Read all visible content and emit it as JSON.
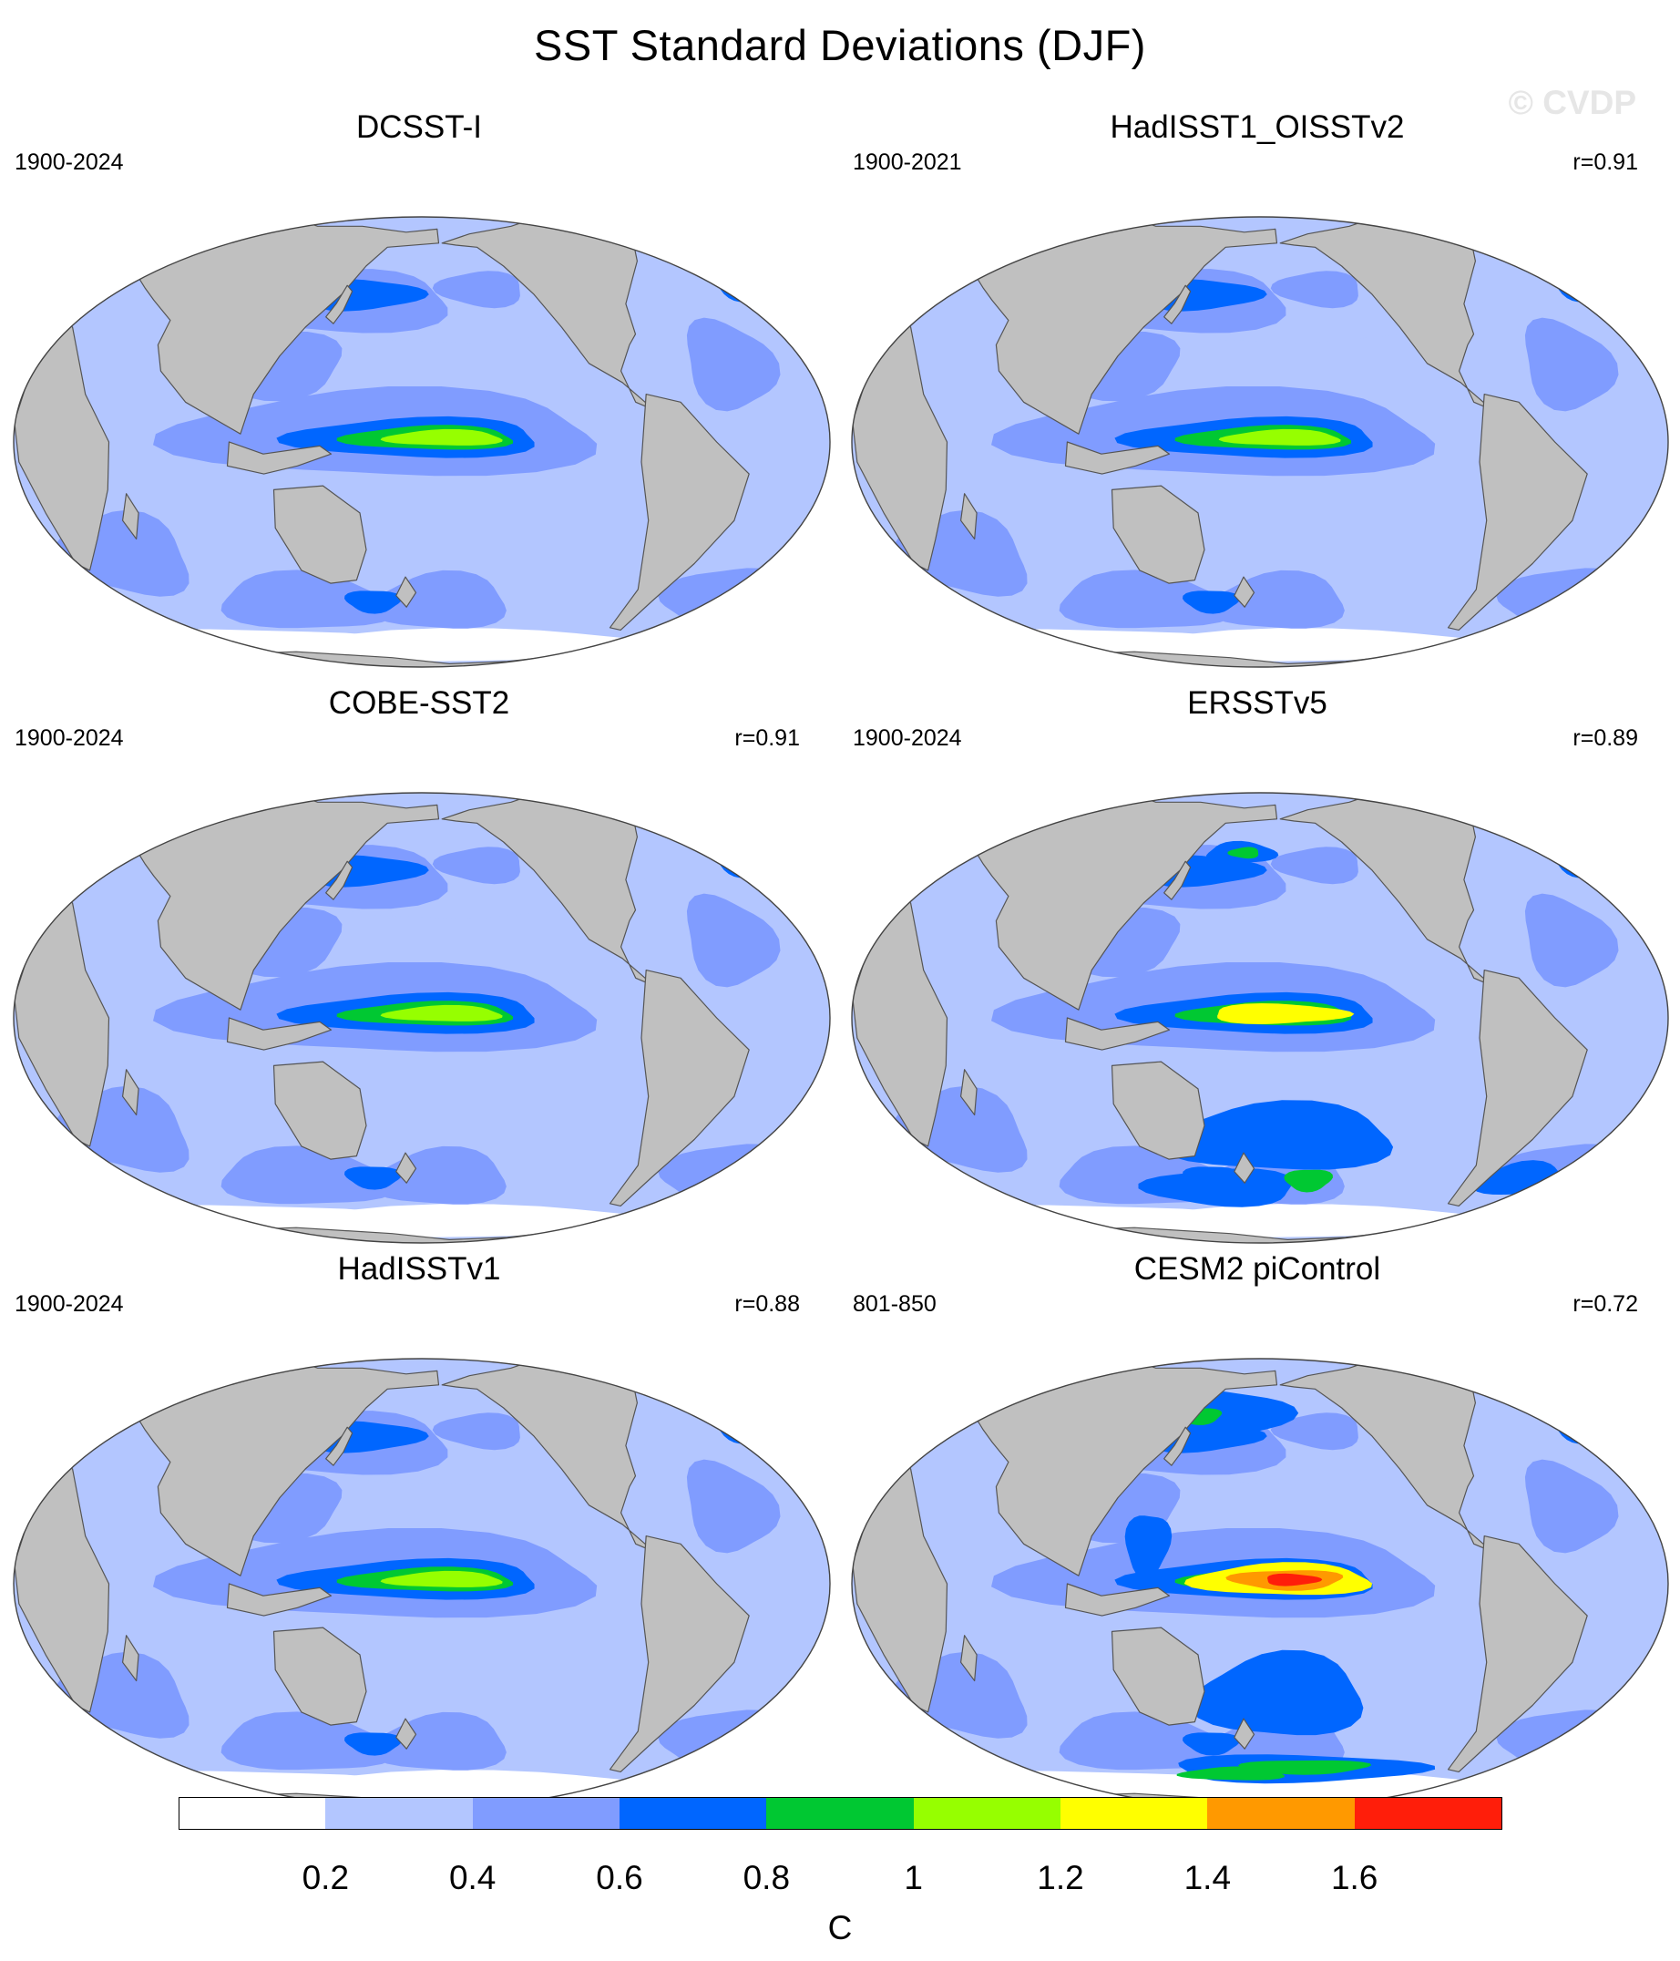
{
  "title": "SST Standard Deviations (DJF)",
  "watermark": "© CVDP",
  "panels": [
    {
      "name": "DCSST-I",
      "period": "1900-2024",
      "r": "",
      "variant": 0
    },
    {
      "name": "HadISST1_OISSTv2",
      "period": "1900-2021",
      "r": "r=0.91",
      "variant": 0
    },
    {
      "name": "COBE-SST2",
      "period": "1900-2024",
      "r": "r=0.91",
      "variant": 0
    },
    {
      "name": "ERSSTv5",
      "period": "1900-2024",
      "r": "r=0.89",
      "variant": 1
    },
    {
      "name": "HadISSTv1",
      "period": "1900-2024",
      "r": "r=0.88",
      "variant": 0
    },
    {
      "name": "CESM2 piControl",
      "period": "801-850",
      "r": "r=0.72",
      "variant": 2
    }
  ],
  "colorbar": {
    "unit": "C",
    "levels": [
      "0.2",
      "0.4",
      "0.6",
      "0.8",
      "1",
      "1.2",
      "1.4",
      "1.6"
    ],
    "colors": [
      "#ffffff",
      "#b3c6ff",
      "#809cff",
      "#0066ff",
      "#00c832",
      "#96ff00",
      "#ffff00",
      "#ff9900",
      "#ff1e0a"
    ]
  },
  "map_colors": {
    "land": "#c0c0c0",
    "coast": "#555555"
  }
}
